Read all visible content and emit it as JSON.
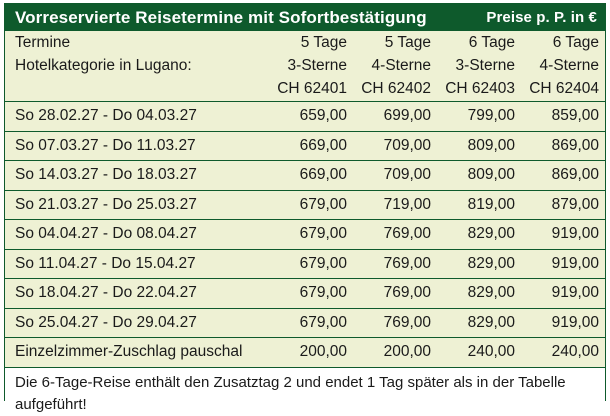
{
  "header": {
    "title": "Vorreservierte Reisetermine mit Sofortbestätigung",
    "price_note": "Preise p. P. in €"
  },
  "table": {
    "head": {
      "termine_label": "Termine",
      "hotel_label": "Hotelkategorie in Lugano:",
      "durations": [
        "5 Tage",
        "5 Tage",
        "6 Tage",
        "6 Tage"
      ],
      "categories": [
        "3-Sterne",
        "4-Sterne",
        "3-Sterne",
        "4-Sterne"
      ],
      "codes": [
        "CH 62401",
        "CH 62402",
        "CH 62403",
        "CH 62404"
      ]
    },
    "rows": [
      {
        "dates": "So  28.02.27 - Do  04.03.27",
        "prices": [
          "659,00",
          "699,00",
          "799,00",
          "859,00"
        ]
      },
      {
        "dates": "So  07.03.27 - Do  11.03.27",
        "prices": [
          "669,00",
          "709,00",
          "809,00",
          "869,00"
        ]
      },
      {
        "dates": "So  14.03.27 - Do  18.03.27",
        "prices": [
          "669,00",
          "709,00",
          "809,00",
          "869,00"
        ]
      },
      {
        "dates": "So  21.03.27 - Do  25.03.27",
        "prices": [
          "679,00",
          "719,00",
          "819,00",
          "879,00"
        ]
      },
      {
        "dates": "So  04.04.27 - Do  08.04.27",
        "prices": [
          "679,00",
          "769,00",
          "829,00",
          "919,00"
        ]
      },
      {
        "dates": "So  11.04.27 - Do  15.04.27",
        "prices": [
          "679,00",
          "769,00",
          "829,00",
          "919,00"
        ]
      },
      {
        "dates": "So  18.04.27 - Do  22.04.27",
        "prices": [
          "679,00",
          "769,00",
          "829,00",
          "919,00"
        ]
      },
      {
        "dates": "So  25.04.27 - Do  29.04.27",
        "prices": [
          "679,00",
          "769,00",
          "829,00",
          "919,00"
        ]
      }
    ],
    "surcharge": {
      "label": "Einzelzimmer-Zuschlag pauschal",
      "prices": [
        "200,00",
        "200,00",
        "240,00",
        "240,00"
      ]
    }
  },
  "footnote": "Die 6-Tage-Reise enthält den Zusatztag 2 und endet 1 Tag später als in der Tabelle aufgeführt!",
  "colors": {
    "header_bg": "#0e5a2c",
    "row_bg": "#eef1d4",
    "text": "#1a1a1a"
  }
}
